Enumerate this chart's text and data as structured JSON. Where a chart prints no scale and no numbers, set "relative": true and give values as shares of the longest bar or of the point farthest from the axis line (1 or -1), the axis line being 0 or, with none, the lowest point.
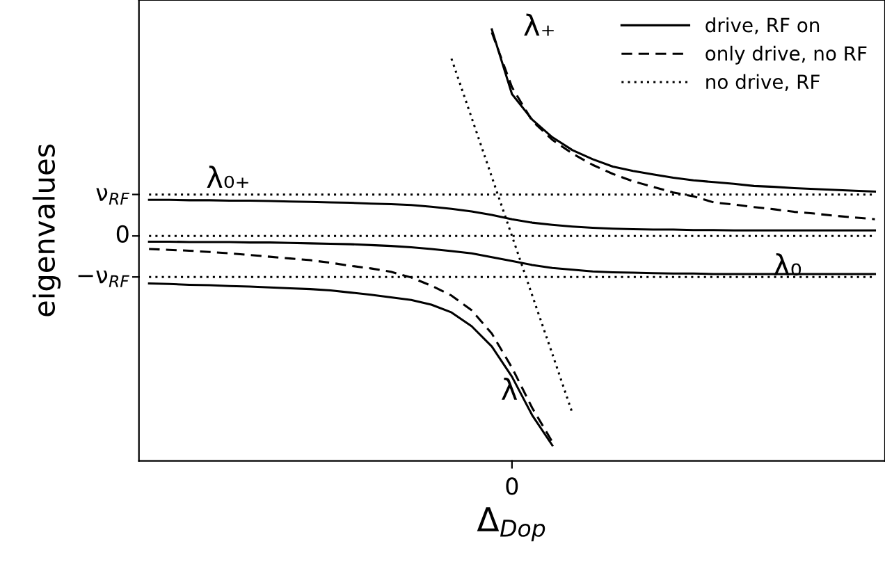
{
  "chart_data": {
    "type": "line",
    "xlabel": "Δ$_{Dop}$",
    "ylabel": "eigenvalues",
    "relative": true,
    "categories": [
      null,
      null,
      null,
      null,
      null,
      null,
      null,
      null,
      null,
      null,
      null,
      null,
      null,
      null,
      null,
      null,
      null,
      null,
      null,
      null,
      null,
      null,
      null,
      null,
      null,
      null,
      null,
      null,
      null,
      null,
      null,
      null,
      null,
      null,
      null,
      null,
      null
    ],
    "legend": "top right",
    "marker": "none",
    "series": [
      {
        "name": "drive, RF on",
        "color": "#000000",
        "line_style": "solid",
        "values": [
          null,
          null,
          null,
          null,
          null,
          null,
          null,
          null,
          null,
          null,
          null,
          null,
          null,
          null,
          null,
          null,
          null,
          1,
          0.85,
          0.791,
          0.75,
          0.72,
          0.699,
          0.682,
          0.672,
          0.664,
          0.656,
          0.65,
          0.646,
          0.642,
          0.637,
          0.635,
          0.632,
          0.63,
          0.628,
          0.626,
          0.624
        ]
      },
      {
        "color": "#000000",
        "line_style": "solid",
        "values": [
          0.605,
          0.605,
          0.604,
          0.604,
          0.603,
          0.603,
          0.602,
          0.601,
          0.6,
          0.599,
          0.598,
          0.596,
          0.595,
          0.593,
          0.589,
          0.584,
          0.578,
          0.57,
          0.56,
          0.552,
          0.547,
          0.543,
          0.54,
          0.538,
          0.537,
          0.536,
          0.536,
          0.535,
          0.535,
          0.534,
          0.534,
          0.534,
          0.534,
          0.534,
          0.534,
          0.534,
          0.534
        ]
      },
      {
        "color": "#000000",
        "line_style": "solid",
        "values": [
          0.508,
          0.508,
          0.507,
          0.507,
          0.507,
          0.506,
          0.506,
          0.505,
          0.504,
          0.503,
          0.502,
          0.5,
          0.498,
          0.495,
          0.491,
          0.486,
          0.481,
          0.472,
          0.463,
          0.454,
          0.447,
          0.443,
          0.439,
          0.437,
          0.436,
          0.435,
          0.434,
          0.434,
          0.433,
          0.433,
          0.433,
          0.433,
          0.433,
          0.433,
          0.433,
          0.433,
          0.433
        ]
      },
      {
        "color": "#000000",
        "line_style": "solid",
        "values": [
          0.411,
          0.41,
          0.408,
          0.407,
          0.405,
          0.404,
          0.402,
          0.4,
          0.398,
          0.395,
          0.39,
          0.385,
          0.379,
          0.373,
          0.362,
          0.344,
          0.312,
          0.265,
          0.195,
          0.106,
          0.036,
          null,
          null,
          null,
          null,
          null,
          null,
          null,
          null,
          null,
          null,
          null,
          null,
          null,
          null,
          null,
          null
        ]
      },
      {
        "name": "only drive, no RF",
        "color": "#000000",
        "line_style": "dashed",
        "values": [
          null,
          null,
          null,
          null,
          null,
          null,
          null,
          null,
          null,
          null,
          null,
          null,
          null,
          null,
          null,
          null,
          null,
          0.993,
          0.866,
          0.788,
          0.744,
          0.712,
          0.686,
          0.665,
          0.648,
          0.635,
          0.622,
          0.613,
          0.599,
          0.594,
          0.588,
          0.583,
          0.577,
          0.573,
          0.568,
          0.564,
          0.56
        ]
      },
      {
        "color": "#000000",
        "line_style": "dashed",
        "values": [
          0.491,
          0.489,
          0.487,
          0.484,
          0.481,
          0.477,
          0.473,
          0.469,
          0.465,
          0.459,
          0.452,
          0.446,
          0.438,
          0.425,
          0.406,
          0.383,
          0.349,
          0.295,
          0.216,
          0.123,
          0.044,
          null,
          null,
          null,
          null,
          null,
          null,
          null,
          null,
          null,
          null,
          null,
          null,
          null,
          null,
          null,
          null
        ]
      },
      {
        "name": "no drive, RF",
        "color": "#000000",
        "line_style": "dotted",
        "values": [
          0.617,
          0.617,
          0.617,
          0.617,
          0.617,
          0.617,
          0.617,
          0.617,
          0.617,
          0.617,
          0.617,
          0.617,
          0.617,
          0.617,
          0.617,
          0.617,
          0.617,
          0.617,
          0.617,
          0.617,
          0.617,
          0.617,
          0.617,
          0.617,
          0.617,
          0.617,
          0.617,
          0.617,
          0.617,
          0.617,
          0.617,
          0.617,
          0.617,
          0.617,
          0.617,
          0.617,
          0.617
        ]
      },
      {
        "color": "#000000",
        "line_style": "dotted",
        "values": [
          0.521,
          0.521,
          0.521,
          0.521,
          0.521,
          0.521,
          0.521,
          0.521,
          0.521,
          0.521,
          0.521,
          0.521,
          0.521,
          0.521,
          0.521,
          0.521,
          0.521,
          0.521,
          0.521,
          0.521,
          0.521,
          0.521,
          0.521,
          0.521,
          0.521,
          0.521,
          0.521,
          0.521,
          0.521,
          0.521,
          0.521,
          0.521,
          0.521,
          0.521,
          0.521,
          0.521,
          0.521
        ]
      },
      {
        "color": "#000000",
        "line_style": "dotted",
        "values": [
          0.426,
          0.426,
          0.426,
          0.426,
          0.426,
          0.426,
          0.426,
          0.426,
          0.426,
          0.426,
          0.426,
          0.426,
          0.426,
          0.426,
          0.426,
          0.426,
          0.426,
          0.426,
          0.426,
          0.426,
          0.426,
          0.426,
          0.426,
          0.426,
          0.426,
          0.426,
          0.426,
          0.426,
          0.426,
          0.426,
          0.426,
          0.426,
          0.426,
          0.426,
          0.426,
          0.426,
          0.426
        ]
      },
      {
        "color": "#000000",
        "line_style": "dotted",
        "values": [
          null,
          null,
          null,
          null,
          null,
          null,
          null,
          null,
          null,
          null,
          null,
          null,
          null,
          null,
          null,
          0.932,
          0.795,
          0.658,
          0.521,
          0.384,
          0.248,
          0.11,
          null,
          null,
          null,
          null,
          null,
          null,
          null,
          null,
          null,
          null,
          null,
          null,
          null,
          null,
          null
        ]
      }
    ],
    "annotations": [
      "λ₊",
      "λ₀₊",
      "λ",
      "λ₀",
      "0",
      "ν$_{RF}$",
      "0",
      "−ν$_{RF}$"
    ]
  }
}
